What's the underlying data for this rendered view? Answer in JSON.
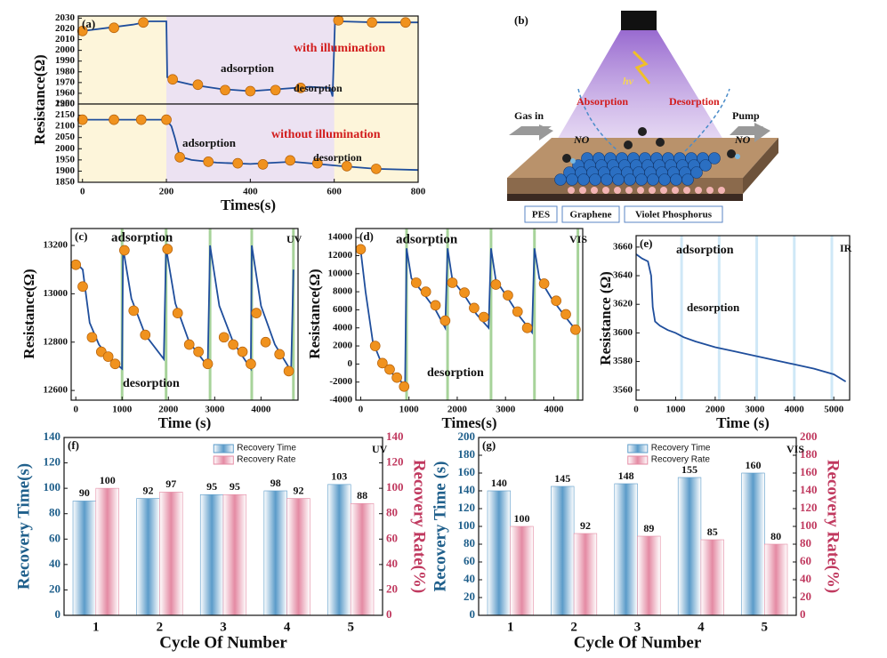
{
  "chart_data": [
    {
      "type": "line",
      "panel": "(a)",
      "ylabel": "Resistance(Ω)",
      "xlim": [
        -10,
        800
      ],
      "ylim": [
        1950,
        2032
      ],
      "yticks": [
        1950,
        1960,
        1970,
        1980,
        1990,
        2000,
        2010,
        2020,
        2030
      ],
      "shade": [
        200,
        600
      ],
      "background": "#fdf5da",
      "shade_color": "#ece2f2",
      "series": [
        {
          "color": "#1f4e9c",
          "x": [
            0,
            60,
            120,
            160,
            200,
            202,
            215,
            260,
            330,
            400,
            470,
            540,
            590,
            596,
            602,
            610,
            700,
            800
          ],
          "values": [
            2018,
            2021,
            2024,
            2027,
            2027,
            1975,
            1972,
            1968,
            1964,
            1962,
            1964,
            1966,
            1965,
            1957,
            2028,
            2027,
            2026,
            2026
          ]
        }
      ],
      "points": {
        "color": "#f0921e",
        "x": [
          0,
          75,
          145,
          215,
          275,
          340,
          400,
          460,
          520,
          610,
          690,
          770
        ],
        "values": [
          2018,
          2021,
          2026,
          1973,
          1968,
          1963,
          1962,
          1963,
          1965,
          2028,
          2026,
          2026
        ]
      },
      "annotations": [
        {
          "text": "adsorption",
          "color": "#111"
        },
        {
          "text": "with illumination",
          "color": "#d21c1c"
        },
        {
          "text": "desorption",
          "color": "#111"
        }
      ]
    },
    {
      "type": "line",
      "xlabel": "Times(s)",
      "xlim": [
        -10,
        800
      ],
      "ylim": [
        1850,
        2200
      ],
      "xticks": [
        0,
        200,
        400,
        600,
        800
      ],
      "yticks": [
        1850,
        1900,
        1950,
        2000,
        2050,
        2100,
        2150,
        2200
      ],
      "shade": [
        200,
        600
      ],
      "background": "#fdf5da",
      "shade_color": "#ece2f2",
      "series": [
        {
          "color": "#1f4e9c",
          "x": [
            0,
            100,
            200,
            212,
            220,
            232,
            260,
            320,
            400,
            460,
            500,
            560,
            620,
            700,
            800
          ],
          "values": [
            2130,
            2130,
            2130,
            2100,
            2050,
            1965,
            1950,
            1938,
            1932,
            1938,
            1942,
            1932,
            1922,
            1910,
            1905
          ]
        }
      ],
      "points": {
        "color": "#f0921e",
        "x": [
          0,
          75,
          140,
          200,
          232,
          300,
          370,
          430,
          495,
          560,
          630,
          700
        ],
        "values": [
          2130,
          2130,
          2130,
          2130,
          1962,
          1942,
          1935,
          1930,
          1948,
          1935,
          1922,
          1910
        ]
      },
      "annotations": [
        {
          "text": "adsorption",
          "color": "#111"
        },
        {
          "text": "without illumination",
          "color": "#d21c1c"
        },
        {
          "text": "desorption",
          "color": "#111"
        }
      ]
    },
    {
      "type": "line",
      "panel": "(c)",
      "xlabel": "Time (s)",
      "ylabel": "Resistance(Ω)",
      "xlim": [
        -100,
        4800
      ],
      "ylim": [
        12560,
        13270
      ],
      "xticks": [
        0,
        1000,
        2000,
        3000,
        4000
      ],
      "yticks": [
        12600,
        12800,
        13000,
        13200
      ],
      "vlines": [
        1000,
        1950,
        2900,
        3800,
        4700
      ],
      "vline_color": "#a7d39a",
      "series": [
        {
          "color": "#1f4e9c",
          "x": [
            0,
            150,
            300,
            500,
            750,
            1000,
            1020,
            1200,
            1500,
            1900,
            1950,
            2150,
            2450,
            2850,
            2900,
            3100,
            3400,
            3780,
            3800,
            4000,
            4300,
            4650,
            4700
          ],
          "values": [
            13130,
            13100,
            12880,
            12790,
            12730,
            12690,
            13190,
            12980,
            12830,
            12730,
            13190,
            12960,
            12800,
            12700,
            13200,
            12950,
            12800,
            12690,
            13200,
            12950,
            12790,
            12680,
            13100
          ]
        }
      ],
      "points": {
        "color": "#f0921e",
        "x": [
          0,
          150,
          350,
          550,
          700,
          850,
          1050,
          1250,
          1500,
          1980,
          2200,
          2450,
          2650,
          2850,
          3200,
          3400,
          3600,
          3780,
          3900,
          4100,
          4400,
          4600
        ],
        "values": [
          13120,
          13030,
          12820,
          12760,
          12740,
          12710,
          13180,
          12930,
          12830,
          13185,
          12920,
          12790,
          12760,
          12710,
          12820,
          12790,
          12760,
          12710,
          12920,
          12800,
          12750,
          12680
        ]
      },
      "annotations": [
        {
          "text": "adsorption",
          "color": "#111"
        },
        {
          "text": "desorption",
          "color": "#111"
        },
        {
          "text": "UV",
          "color": "#111"
        }
      ]
    },
    {
      "type": "line",
      "panel": "(d)",
      "xlabel": "Times(s)",
      "ylabel": "Resistance(Ω)",
      "xlim": [
        -100,
        4600
      ],
      "ylim": [
        -4000,
        15000
      ],
      "xticks": [
        0,
        1000,
        2000,
        3000,
        4000
      ],
      "yticks": [
        -4000,
        -2000,
        0,
        2000,
        4000,
        6000,
        8000,
        10000,
        12000,
        14000
      ],
      "vlines": [
        950,
        1800,
        2700,
        3600,
        4500
      ],
      "vline_color": "#a7d39a",
      "series": [
        {
          "color": "#1f4e9c",
          "x": [
            0,
            100,
            250,
            400,
            600,
            850,
            920,
            950,
            1050,
            1300,
            1550,
            1750,
            1800,
            1900,
            2150,
            2400,
            2650,
            2700,
            2800,
            3050,
            3300,
            3550,
            3600,
            3700,
            3950,
            4200,
            4450
          ],
          "values": [
            12600,
            8000,
            2500,
            500,
            -800,
            -2000,
            -2500,
            12800,
            9500,
            7800,
            6000,
            4000,
            12800,
            9300,
            7600,
            5500,
            4000,
            12800,
            9300,
            7300,
            5200,
            3500,
            12800,
            9500,
            7300,
            5500,
            3800
          ]
        }
      ],
      "points": {
        "color": "#f0921e",
        "x": [
          0,
          300,
          450,
          600,
          750,
          900,
          1150,
          1350,
          1550,
          1750,
          1900,
          2150,
          2350,
          2550,
          2800,
          3050,
          3250,
          3450,
          3800,
          4050,
          4250,
          4450
        ],
        "values": [
          12700,
          2000,
          100,
          -600,
          -1500,
          -2500,
          9000,
          8000,
          6500,
          4800,
          9000,
          7900,
          6200,
          5200,
          8800,
          7600,
          5800,
          4000,
          8900,
          7000,
          5500,
          3800
        ]
      },
      "annotations": [
        {
          "text": "adsorption",
          "color": "#111"
        },
        {
          "text": "desorption",
          "color": "#111"
        },
        {
          "text": "VIS",
          "color": "#111"
        }
      ]
    },
    {
      "type": "line",
      "panel": "(e)",
      "xlabel": "Time (s)",
      "ylabel": "Resistance (Ω)",
      "xlim": [
        0,
        5400
      ],
      "ylim": [
        3553,
        3668
      ],
      "xticks": [
        0,
        1000,
        2000,
        3000,
        4000,
        5000
      ],
      "yticks": [
        3560,
        3580,
        3600,
        3620,
        3640,
        3660
      ],
      "vlines": [
        1150,
        2100,
        3050,
        4000,
        4950
      ],
      "vline_color": "#cfe8f7",
      "series": [
        {
          "color": "#1f4e9c",
          "x": [
            0,
            150,
            300,
            380,
            420,
            480,
            600,
            800,
            1000,
            1200,
            1500,
            2000,
            2500,
            3000,
            3500,
            4000,
            4500,
            5000,
            5300
          ],
          "values": [
            3655,
            3652,
            3650,
            3640,
            3618,
            3608,
            3605,
            3602,
            3600,
            3597,
            3594,
            3590,
            3587,
            3584,
            3581,
            3578,
            3575,
            3571,
            3566
          ]
        }
      ],
      "annotations": [
        {
          "text": "adsorption",
          "color": "#111"
        },
        {
          "text": "desorption",
          "color": "#111"
        },
        {
          "text": "IR",
          "color": "#111"
        }
      ]
    },
    {
      "type": "bar",
      "panel": "(f)",
      "xlabel": "Cycle Of Number",
      "ylabel": "Recovery Time(s)",
      "y2label": "Recovery Rate(%)",
      "categories": [
        "1",
        "2",
        "3",
        "4",
        "5"
      ],
      "ylim": [
        0,
        140
      ],
      "yticks": [
        0,
        20,
        40,
        60,
        80,
        100,
        120,
        140
      ],
      "y2lim": [
        0,
        140
      ],
      "y2ticks": [
        0,
        20,
        40,
        60,
        80,
        100,
        120,
        140
      ],
      "series": [
        {
          "name": "Recovery Time",
          "color": "#5b9bc9",
          "values": [
            90,
            92,
            95,
            98,
            103
          ]
        },
        {
          "name": "Recovery Rate",
          "color": "#e48aa3",
          "axis": "y2",
          "values": [
            100,
            97,
            95,
            92,
            88
          ]
        }
      ],
      "annotations": [
        {
          "text": "UV",
          "color": "#111"
        }
      ]
    },
    {
      "type": "bar",
      "panel": "(g)",
      "xlabel": "Cycle Of Number",
      "ylabel": "Recovery Time (s)",
      "y2label": "Recovery Rate(%)",
      "categories": [
        "1",
        "2",
        "3",
        "4",
        "5"
      ],
      "ylim": [
        0,
        200
      ],
      "yticks": [
        0,
        20,
        40,
        60,
        80,
        100,
        120,
        140,
        160,
        180,
        200
      ],
      "y2lim": [
        0,
        200
      ],
      "y2ticks": [
        0,
        20,
        40,
        60,
        80,
        100,
        120,
        140,
        160,
        180,
        200
      ],
      "series": [
        {
          "name": "Recovery Time",
          "color": "#5b9bc9",
          "values": [
            140,
            145,
            148,
            155,
            160
          ]
        },
        {
          "name": "Recovery Rate",
          "color": "#e48aa3",
          "axis": "y2",
          "values": [
            100,
            92,
            89,
            85,
            80
          ]
        }
      ],
      "annotations": [
        {
          "text": "VIS",
          "color": "#111"
        }
      ]
    }
  ],
  "diagram": {
    "label": "(b)",
    "gas_left": "NO",
    "gas_right": "NO",
    "light": "hν",
    "absorption": "Absorption",
    "desorption": "Desorption",
    "gas_in": "Gas in",
    "pump": "Pump",
    "layers": [
      "PES",
      "Graphene",
      "Violet Phosphorus"
    ]
  }
}
